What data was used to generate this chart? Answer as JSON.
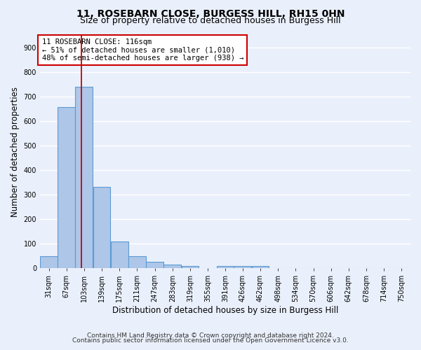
{
  "title": "11, ROSEBARN CLOSE, BURGESS HILL, RH15 0HN",
  "subtitle": "Size of property relative to detached houses in Burgess Hill",
  "xlabel": "Distribution of detached houses by size in Burgess Hill",
  "ylabel": "Number of detached properties",
  "bar_color": "#aec6e8",
  "bar_edge_color": "#5b9bd5",
  "background_color": "#eaf0fb",
  "grid_color": "#ffffff",
  "categories": [
    "31sqm",
    "67sqm",
    "103sqm",
    "139sqm",
    "175sqm",
    "211sqm",
    "247sqm",
    "283sqm",
    "319sqm",
    "355sqm",
    "391sqm",
    "426sqm",
    "462sqm",
    "498sqm",
    "534sqm",
    "570sqm",
    "606sqm",
    "642sqm",
    "678sqm",
    "714sqm",
    "750sqm"
  ],
  "values": [
    50,
    655,
    740,
    330,
    108,
    50,
    25,
    15,
    10,
    0,
    10,
    10,
    10,
    0,
    0,
    0,
    0,
    0,
    0,
    0,
    0
  ],
  "redline_x": 116,
  "bin_edges": [
    31,
    67,
    103,
    139,
    175,
    211,
    247,
    283,
    319,
    355,
    391,
    426,
    462,
    498,
    534,
    570,
    606,
    642,
    678,
    714,
    750
  ],
  "annotation_text": "11 ROSEBARN CLOSE: 116sqm\n← 51% of detached houses are smaller (1,010)\n48% of semi-detached houses are larger (938) →",
  "annotation_box_color": "#ffffff",
  "annotation_border_color": "#cc0000",
  "ylim": [
    0,
    950
  ],
  "yticks": [
    0,
    100,
    200,
    300,
    400,
    500,
    600,
    700,
    800,
    900
  ],
  "footnote1": "Contains HM Land Registry data © Crown copyright and database right 2024.",
  "footnote2": "Contains public sector information licensed under the Open Government Licence v3.0.",
  "title_fontsize": 10,
  "subtitle_fontsize": 9,
  "tick_fontsize": 7,
  "ylabel_fontsize": 8.5,
  "xlabel_fontsize": 8.5,
  "annotation_fontsize": 7.5,
  "footnote_fontsize": 6.5
}
